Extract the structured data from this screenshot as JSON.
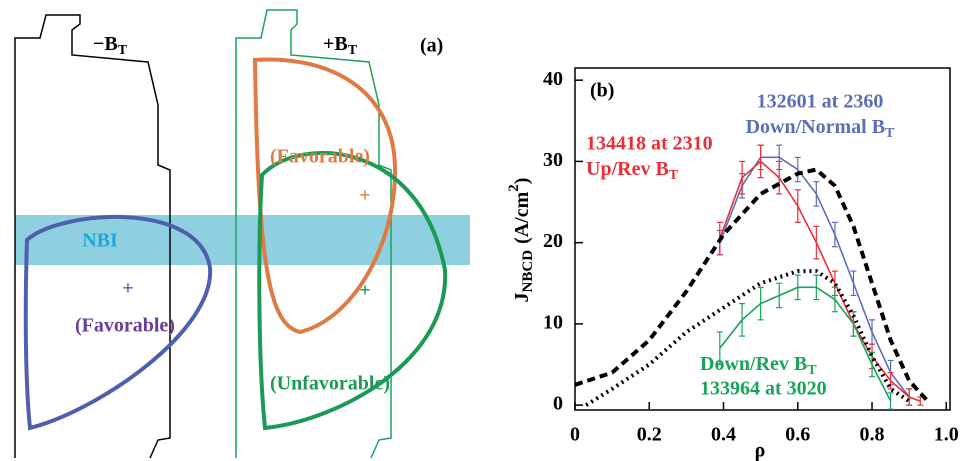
{
  "diagram": {
    "left_title": "−B",
    "left_title_sub": "T",
    "right_title": "+B",
    "right_title_sub": "T",
    "panel": "(a)",
    "beam": "NBI",
    "left_plus": "+",
    "left_label": "(Favorable)",
    "upper_label": "(Favorable)",
    "upper_plus": "+",
    "lower_plus": "+",
    "lower_label": "(Unfavorable)"
  },
  "chart_data": {
    "type": "line",
    "panel": "(b)",
    "xlabel": "ρ",
    "ylabel": {
      "main": "J",
      "sub": "NBCD",
      "unit": "(A/cm",
      "sup": "2",
      "close": ")"
    },
    "xlim": [
      0,
      1.01
    ],
    "ylim": [
      -0.6,
      41.5
    ],
    "xticks": [
      0,
      0.2,
      0.4,
      0.6,
      0.8,
      {
        "value": 1,
        "label": "1.0"
      }
    ],
    "yticks": [
      0,
      10,
      20,
      30,
      40
    ],
    "series": [
      {
        "name": "132601 at 2360",
        "note": "Down/Normal B",
        "note_sub": "T",
        "color": "#5b6fb5",
        "x": [
          0.39,
          0.45,
          0.5,
          0.55,
          0.6,
          0.65,
          0.7,
          0.75,
          0.8,
          0.85,
          0.9
        ],
        "values": [
          20,
          27,
          30.5,
          30.5,
          29,
          26,
          21,
          15,
          9,
          4,
          1
        ],
        "errors": [
          1.5,
          1.5,
          1.5,
          1.5,
          1.5,
          1.5,
          1.5,
          1.5,
          1.5,
          1.5,
          1
        ]
      },
      {
        "name": "134418 at 2310",
        "note": "Up/Rev B",
        "note_sub": "T",
        "color": "#e8303a",
        "x": [
          0.39,
          0.45,
          0.5,
          0.55,
          0.6,
          0.65,
          0.7,
          0.75,
          0.8,
          0.85,
          0.9,
          0.93
        ],
        "values": [
          20.5,
          28,
          30,
          28,
          24.5,
          20,
          15,
          10,
          6,
          3,
          1,
          0.5
        ],
        "errors": [
          2,
          2,
          2,
          2,
          2,
          2,
          1.5,
          1.5,
          1.5,
          1,
          1,
          0.5
        ]
      },
      {
        "name": "133964 at 3020",
        "note": "Down/Rev B",
        "note_sub": "T",
        "color": "#1aa35a",
        "x": [
          0.39,
          0.45,
          0.5,
          0.55,
          0.6,
          0.65,
          0.7,
          0.75,
          0.8,
          0.85
        ],
        "values": [
          7,
          10.5,
          12.5,
          13.5,
          14.5,
          14.5,
          13,
          10,
          5,
          0.5
        ],
        "errors": [
          2,
          2,
          2,
          1.5,
          1.5,
          1.5,
          1.5,
          1.5,
          1.5,
          1
        ]
      },
      {
        "color": "#000000",
        "dash": "8,5",
        "x": [
          0,
          0.1,
          0.2,
          0.3,
          0.4,
          0.5,
          0.6,
          0.65,
          0.7,
          0.75,
          0.8,
          0.85,
          0.9,
          0.95
        ],
        "values": [
          2.5,
          4,
          8,
          14,
          21,
          26,
          28.5,
          29,
          27,
          22,
          15,
          8,
          3,
          0.5
        ]
      },
      {
        "color": "#000000",
        "dash": "2,4",
        "x": [
          0.03,
          0.1,
          0.2,
          0.3,
          0.4,
          0.5,
          0.6,
          0.65,
          0.7,
          0.75,
          0.8,
          0.85,
          0.9
        ],
        "values": [
          0,
          2,
          5,
          9,
          12,
          15,
          16.5,
          16.5,
          15,
          11,
          6,
          2,
          0.5
        ]
      }
    ]
  }
}
